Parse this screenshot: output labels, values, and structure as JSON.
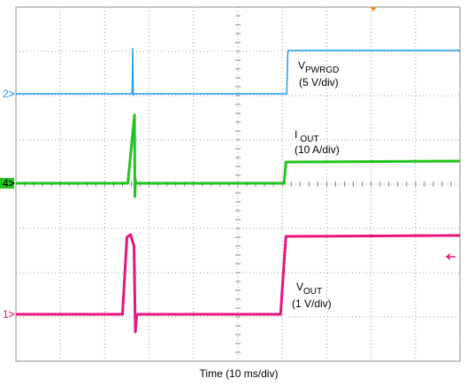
{
  "chart_data": {
    "type": "line",
    "x_label": "Time (10 ms/div)",
    "xlim": [
      0,
      10
    ],
    "ylim": [
      0,
      8
    ],
    "xticks": [
      0,
      1,
      2,
      3,
      4,
      5,
      6,
      7,
      8,
      9,
      10
    ],
    "yticks": [
      0,
      1,
      2,
      3,
      4,
      5,
      6,
      7,
      8
    ],
    "grid": true,
    "series": [
      {
        "channel": "2",
        "color": "#1e9ee8",
        "width": 1.5,
        "label": {
          "main": "V",
          "sub": "PWRGD",
          "scale": "(5 V/div)"
        },
        "x": [
          0,
          2.6,
          2.62,
          2.63,
          2.64,
          2.66,
          6.1,
          6.12,
          6.13,
          10
        ],
        "values": [
          6.04,
          6.04,
          6.1,
          7.06,
          6.0,
          6.04,
          6.04,
          6.9,
          7.02,
          7.02
        ]
      },
      {
        "channel": "4",
        "color": "#22c41e",
        "width": 3,
        "label": {
          "main": "I",
          "sub": "OUT",
          "scale": "(10 A/div)"
        },
        "x": [
          0,
          2.52,
          2.67,
          2.68,
          2.69,
          2.7,
          2.72,
          6.04,
          6.08,
          10
        ],
        "values": [
          4.02,
          4.02,
          5.56,
          3.72,
          4.1,
          4.02,
          4.02,
          4.02,
          4.5,
          4.52
        ]
      },
      {
        "channel": "1",
        "color": "#e6157e",
        "width": 3,
        "label": {
          "main": "V",
          "sub": "OUT",
          "scale": "(1 V/div)"
        },
        "x": [
          0,
          2.4,
          2.5,
          2.58,
          2.66,
          2.69,
          2.72,
          2.76,
          5.96,
          6.08,
          10
        ],
        "values": [
          1.06,
          1.06,
          2.8,
          2.86,
          2.6,
          0.66,
          1.04,
          1.06,
          1.06,
          2.82,
          2.84
        ]
      }
    ]
  }
}
